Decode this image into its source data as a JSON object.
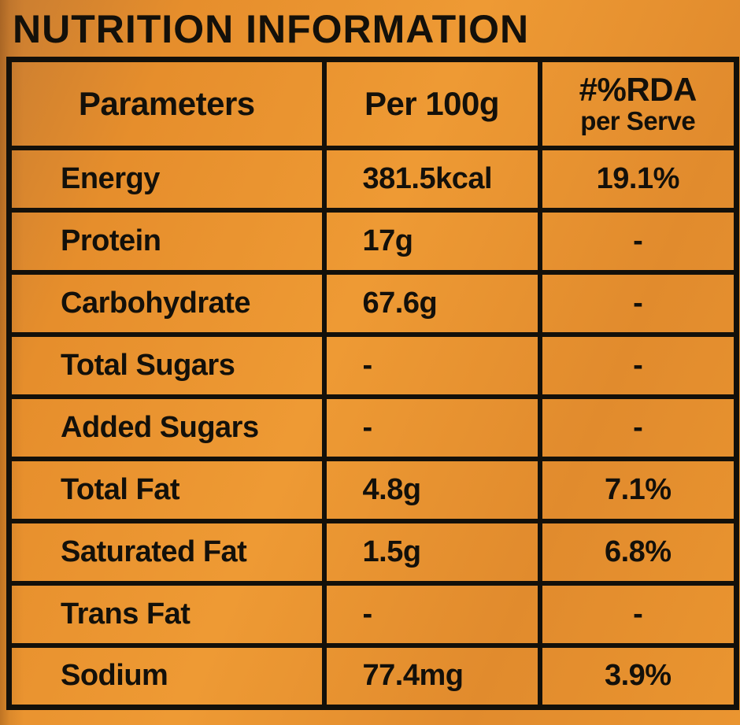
{
  "title": "NUTRITION INFORMATION",
  "colors": {
    "background_orange": "#e8922d",
    "background_orange_dark_edge": "#c97d31",
    "ink_black": "#13100a"
  },
  "table": {
    "headers": {
      "parameters": "Parameters",
      "per_100g": "Per 100g",
      "rda_line1": "#%RDA",
      "rda_line2": "per Serve"
    },
    "rows": [
      {
        "parameter": "Energy",
        "per_100g": "381.5kcal",
        "rda": "19.1%"
      },
      {
        "parameter": "Protein",
        "per_100g": "17g",
        "rda": "-"
      },
      {
        "parameter": "Carbohydrate",
        "per_100g": "67.6g",
        "rda": "-"
      },
      {
        "parameter": "Total Sugars",
        "per_100g": "-",
        "rda": "-"
      },
      {
        "parameter": "Added Sugars",
        "per_100g": "-",
        "rda": "-"
      },
      {
        "parameter": "Total Fat",
        "per_100g": "4.8g",
        "rda": "7.1%"
      },
      {
        "parameter": "Saturated Fat",
        "per_100g": "1.5g",
        "rda": "6.8%"
      },
      {
        "parameter": "Trans Fat",
        "per_100g": "-",
        "rda": "-"
      },
      {
        "parameter": "Sodium",
        "per_100g": "77.4mg",
        "rda": "3.9%"
      }
    ]
  }
}
